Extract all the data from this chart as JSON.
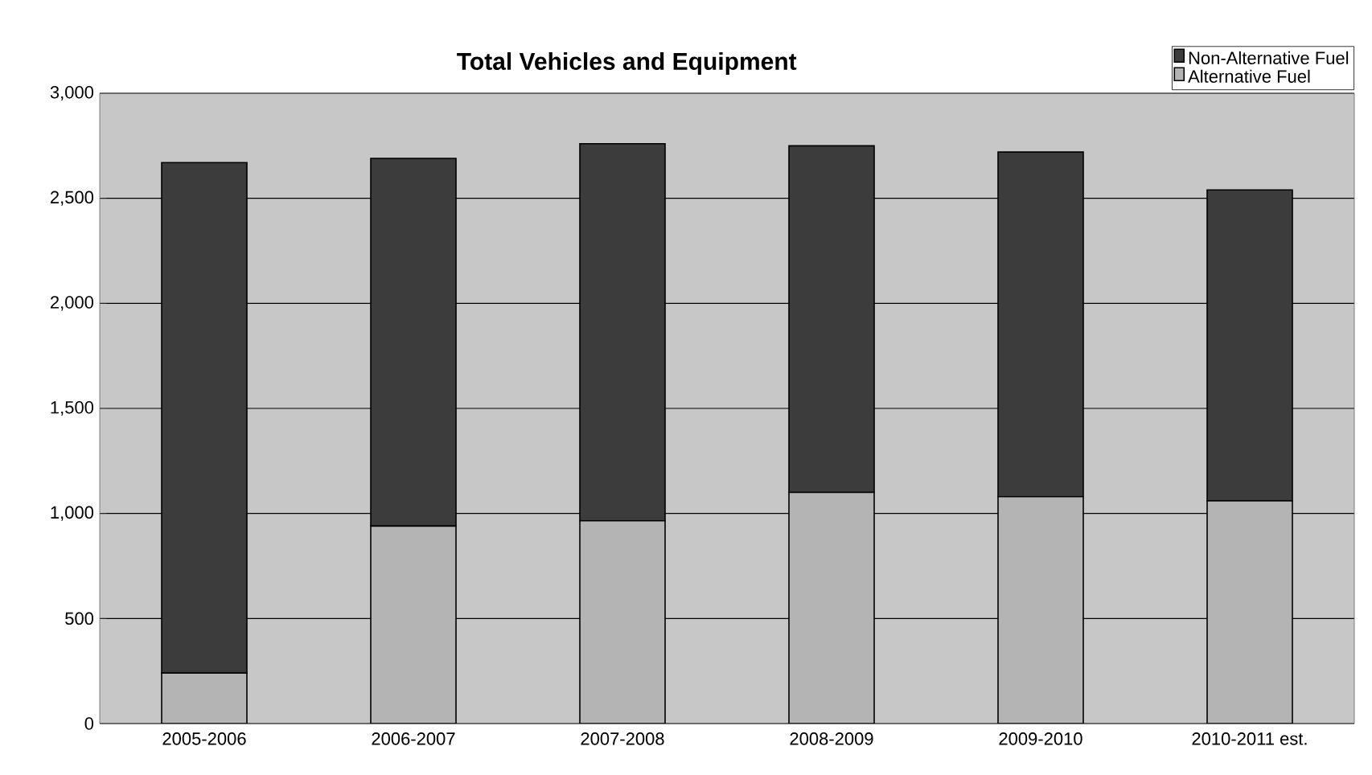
{
  "chart_data": {
    "type": "bar",
    "title": "Total Vehicles and Equipment",
    "stacked": true,
    "categories": [
      "2005-2006",
      "2006-2007",
      "2007-2008",
      "2008-2009",
      "2009-2010",
      "2010-2011 est."
    ],
    "series": [
      {
        "name": "Alternative Fuel",
        "color": "#b4b4b4",
        "values": [
          240,
          940,
          965,
          1100,
          1080,
          1060
        ]
      },
      {
        "name": "Non-Alternative Fuel",
        "color": "#3c3c3c",
        "values": [
          2430,
          1750,
          1795,
          1650,
          1640,
          1480
        ]
      }
    ],
    "ylim": [
      0,
      3000
    ],
    "yticks": [
      0,
      500,
      {
        "value": 1000,
        "label": "1,000"
      },
      {
        "value": 1500,
        "label": "1,500"
      },
      {
        "value": 2000,
        "label": "2,000"
      },
      {
        "value": 2500,
        "label": "2,500"
      },
      {
        "value": 3000,
        "label": "3,000"
      }
    ],
    "grid": "y",
    "legend": "top right"
  }
}
